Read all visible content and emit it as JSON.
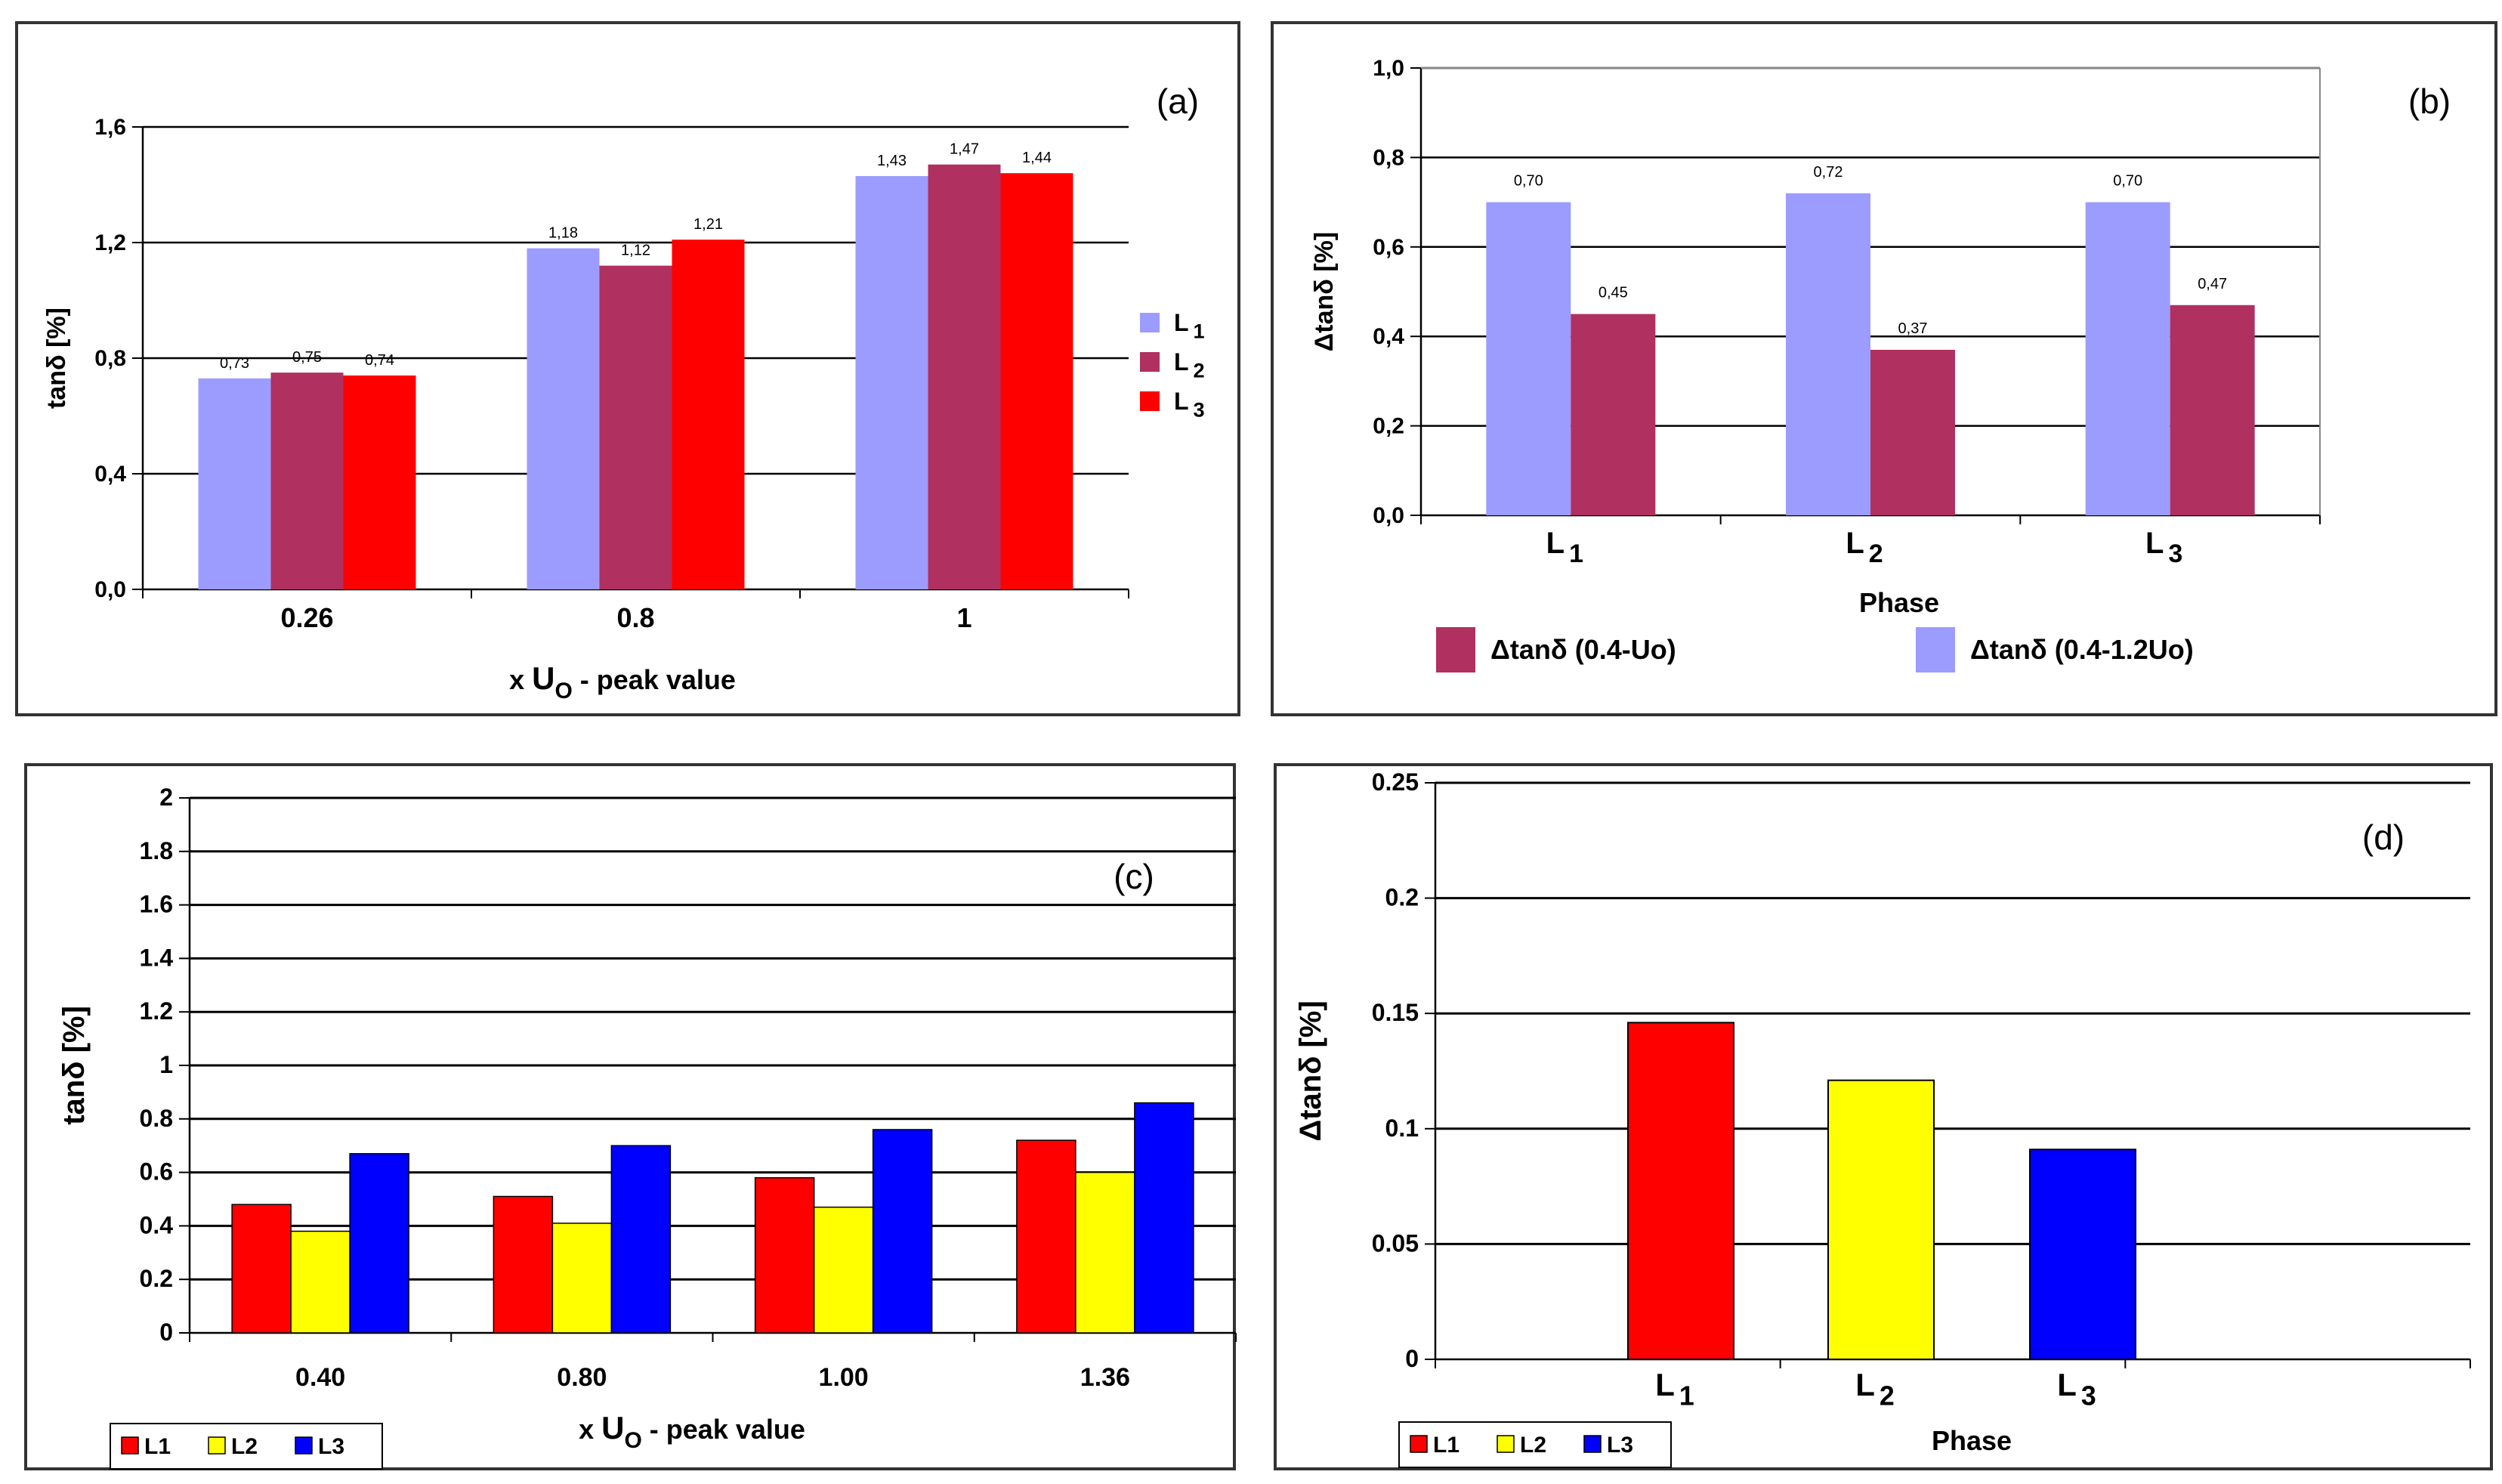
{
  "chart_data": [
    {
      "id": "a",
      "type": "bar",
      "panel_label": "(a)",
      "categories": [
        "0.26",
        "0.8",
        "1"
      ],
      "series": [
        {
          "name": "L",
          "sub": "1",
          "color": "#9c9cff",
          "values": [
            0.73,
            1.18,
            1.43
          ],
          "labels": [
            "0,73",
            "1,18",
            "1,43"
          ]
        },
        {
          "name": "L",
          "sub": "2",
          "color": "#b03060",
          "values": [
            0.75,
            1.12,
            1.47
          ],
          "labels": [
            "0,75",
            "1,12",
            "1,47"
          ]
        },
        {
          "name": "L",
          "sub": "3",
          "color": "#ff0000",
          "values": [
            0.74,
            1.21,
            1.44
          ],
          "labels": [
            "0,74",
            "1,21",
            "1,44"
          ]
        }
      ],
      "ylabel": "tanδ [%]",
      "xlabel": {
        "pre": "x",
        "main": "U",
        "sub": "O",
        "post": " - peak value"
      },
      "ylim": [
        0,
        1.6
      ],
      "yticks": [
        0,
        0.4,
        0.8,
        1.2,
        1.6
      ],
      "ytick_labels": [
        "0,0",
        "0,4",
        "0,8",
        "1,2",
        "1,6"
      ],
      "legend_position": "right"
    },
    {
      "id": "b",
      "type": "bar",
      "panel_label": "(b)",
      "categories": [
        {
          "main": "L",
          "sub": "1"
        },
        {
          "main": "L",
          "sub": "2"
        },
        {
          "main": "L",
          "sub": "3"
        }
      ],
      "series": [
        {
          "name": "Δtanδ (0.4-1.2Uo)",
          "color": "#9c9cff",
          "values": [
            0.7,
            0.72,
            0.7
          ],
          "labels": [
            "0,70",
            "0,72",
            "0,70"
          ]
        },
        {
          "name": "Δtanδ (0.4-Uo)",
          "color": "#b03060",
          "values": [
            0.45,
            0.37,
            0.47
          ],
          "labels": [
            "0,45",
            "0,37",
            "0,47"
          ]
        }
      ],
      "ylabel": "Δtanδ [%]",
      "xlabel": "Phase",
      "ylim": [
        0,
        1.0
      ],
      "yticks": [
        0,
        0.2,
        0.4,
        0.6,
        0.8,
        1.0
      ],
      "ytick_labels": [
        "0,0",
        "0,2",
        "0,4",
        "0,6",
        "0,8",
        "1,0"
      ],
      "legend_position": "bottom"
    },
    {
      "id": "c",
      "type": "bar",
      "panel_label": "(c)",
      "categories": [
        "0.40",
        "0.80",
        "1.00",
        "1.36"
      ],
      "series": [
        {
          "name": "L1",
          "color": "#ff0000",
          "values": [
            0.48,
            0.51,
            0.58,
            0.72
          ]
        },
        {
          "name": "L2",
          "color": "#ffff00",
          "values": [
            0.38,
            0.41,
            0.47,
            0.6
          ]
        },
        {
          "name": "L3",
          "color": "#0000ff",
          "values": [
            0.67,
            0.7,
            0.76,
            0.86
          ]
        }
      ],
      "ylabel": "tanδ [%]",
      "xlabel": {
        "pre": "x",
        "main": "U",
        "sub": "O",
        "post": " - peak value"
      },
      "ylim": [
        0,
        2
      ],
      "yticks": [
        0,
        0.2,
        0.4,
        0.6,
        0.8,
        1,
        1.2,
        1.4,
        1.6,
        1.8,
        2
      ],
      "ytick_labels": [
        "0",
        "0.2",
        "0.4",
        "0.6",
        "0.8",
        "1",
        "1.2",
        "1.4",
        "1.6",
        "1.8",
        "2"
      ],
      "legend_position": "bottom-left"
    },
    {
      "id": "d",
      "type": "bar",
      "panel_label": "(d)",
      "categories": [
        {
          "main": "L",
          "sub": "1"
        },
        {
          "main": "L",
          "sub": "2"
        },
        {
          "main": "L",
          "sub": "3"
        }
      ],
      "series": [
        {
          "name": "L1",
          "color": "#ff0000"
        },
        {
          "name": "L2",
          "color": "#ffff00"
        },
        {
          "name": "L3",
          "color": "#0000ff"
        }
      ],
      "values": [
        0.146,
        0.121,
        0.091
      ],
      "ylabel": "Δtanδ [%]",
      "xlabel": "Phase",
      "ylim": [
        0,
        0.25
      ],
      "yticks": [
        0,
        0.05,
        0.1,
        0.15,
        0.2,
        0.25
      ],
      "ytick_labels": [
        "0",
        "0.05",
        "0.1",
        "0.15",
        "0.2",
        "0.25"
      ],
      "legend_position": "bottom-left"
    }
  ]
}
